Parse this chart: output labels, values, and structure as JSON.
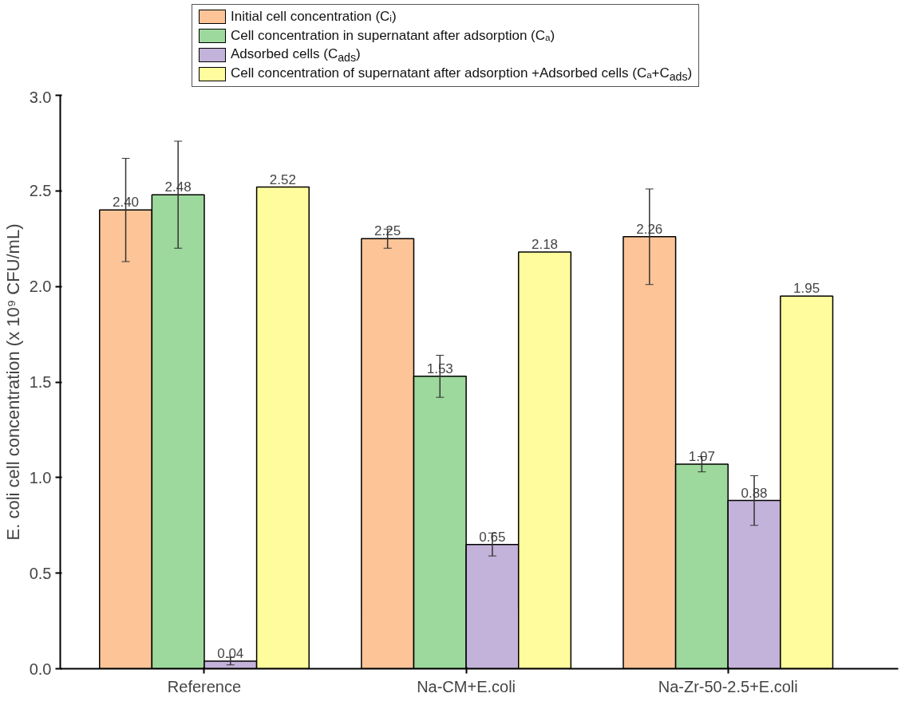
{
  "chart_data": {
    "type": "bar",
    "ylabel": "E. coli cell concentration (x 10⁹ CFU/mL)",
    "categories": [
      "Reference",
      "Na-CM+E.coli",
      "Na-Zr-50-2.5+E.coli"
    ],
    "series": [
      {
        "name": "Initial cell concentration (Cᵢ)",
        "color": "#fcc497",
        "values": [
          2.4,
          2.25,
          2.26
        ],
        "value_labels": [
          "2.40",
          "2.25",
          "2.26"
        ],
        "errors": [
          0.27,
          0.05,
          0.25
        ]
      },
      {
        "name": "Cell concentration in supernatant after adsorption (Cₐ)",
        "color": "#9dd89c",
        "values": [
          2.48,
          1.53,
          1.07
        ],
        "value_labels": [
          "2.48",
          "1.53",
          "1.07"
        ],
        "errors": [
          0.28,
          0.11,
          0.04
        ]
      },
      {
        "name": "Adsorbed cells (C$_{ads}$)",
        "color": "#c3b2d9",
        "values": [
          0.04,
          0.65,
          0.88
        ],
        "value_labels": [
          "0.04",
          "0.65",
          "0.88"
        ],
        "errors": [
          0.02,
          0.06,
          0.13
        ]
      },
      {
        "name": "Cell concentration of supernatant after adsorption +Adsorbed cells (Cₐ+C$_{ads}$)",
        "color": "#fefc9d",
        "values": [
          2.52,
          2.18,
          1.95
        ],
        "value_labels": [
          "2.52",
          "2.18",
          "1.95"
        ]
      }
    ],
    "ylim": [
      0,
      3.0
    ],
    "yticks": [
      {
        "value": 0,
        "label": "0.0"
      },
      {
        "value": 0.5,
        "label": "0.5"
      },
      {
        "value": 1.0,
        "label": "1.0"
      },
      {
        "value": 1.5,
        "label": "1.5"
      },
      {
        "value": 2.0,
        "label": "2.0"
      },
      {
        "value": 2.5,
        "label": "2.5"
      },
      {
        "value": 3.0,
        "label": "3.0"
      }
    ],
    "legend": "top",
    "grid": false
  }
}
